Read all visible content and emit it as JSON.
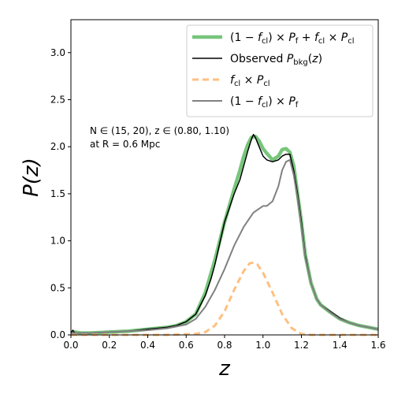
{
  "chart_data": {
    "type": "line",
    "xlabel": "z",
    "ylabel": "P(z)",
    "xlim": [
      0.0,
      1.6
    ],
    "ylim": [
      0.0,
      3.35
    ],
    "xticks": [
      "0.0",
      "0.2",
      "0.4",
      "0.6",
      "0.8",
      "1.0",
      "1.2",
      "1.4",
      "1.6"
    ],
    "yticks": [
      "0.0",
      "0.5",
      "1.0",
      "1.5",
      "2.0",
      "2.5",
      "3.0"
    ],
    "annotation": [
      "N ∈ (15, 20), z ∈ (0.80, 1.10)",
      "at R = 0.6 Mpc"
    ],
    "grid": false,
    "legend_position": "top-right",
    "series": [
      {
        "name": "(1 − f_cl) × P_f + f_cl × P_cl",
        "color": "#77c57b",
        "style": "solid-thick",
        "x": [
          0.0,
          0.02,
          0.05,
          0.1,
          0.2,
          0.3,
          0.35,
          0.4,
          0.5,
          0.55,
          0.6,
          0.65,
          0.7,
          0.75,
          0.8,
          0.85,
          0.88,
          0.9,
          0.92,
          0.94,
          0.96,
          0.98,
          1.0,
          1.02,
          1.05,
          1.08,
          1.1,
          1.12,
          1.14,
          1.16,
          1.18,
          1.2,
          1.22,
          1.25,
          1.28,
          1.3,
          1.35,
          1.4,
          1.45,
          1.5,
          1.55,
          1.6
        ],
        "y": [
          0.02,
          0.03,
          0.02,
          0.02,
          0.03,
          0.04,
          0.05,
          0.06,
          0.08,
          0.1,
          0.14,
          0.22,
          0.45,
          0.8,
          1.2,
          1.55,
          1.75,
          1.9,
          2.02,
          2.1,
          2.11,
          2.06,
          1.98,
          1.93,
          1.86,
          1.9,
          1.97,
          1.98,
          1.94,
          1.8,
          1.5,
          1.2,
          0.85,
          0.55,
          0.38,
          0.32,
          0.24,
          0.17,
          0.13,
          0.1,
          0.08,
          0.06
        ]
      },
      {
        "name": "Observed P_bkg(z)",
        "color": "#000000",
        "style": "solid",
        "x": [
          0.0,
          0.01,
          0.02,
          0.05,
          0.1,
          0.2,
          0.3,
          0.35,
          0.4,
          0.5,
          0.55,
          0.6,
          0.65,
          0.7,
          0.73,
          0.75,
          0.8,
          0.85,
          0.88,
          0.9,
          0.92,
          0.94,
          0.95,
          0.96,
          0.98,
          1.0,
          1.02,
          1.05,
          1.08,
          1.1,
          1.12,
          1.14,
          1.16,
          1.18,
          1.2,
          1.22,
          1.25,
          1.28,
          1.3,
          1.35,
          1.4,
          1.45,
          1.5,
          1.55,
          1.6
        ],
        "y": [
          0.02,
          0.05,
          0.02,
          0.02,
          0.02,
          0.03,
          0.04,
          0.05,
          0.06,
          0.08,
          0.1,
          0.14,
          0.22,
          0.42,
          0.6,
          0.75,
          1.2,
          1.5,
          1.65,
          1.8,
          1.95,
          2.08,
          2.13,
          2.1,
          2.0,
          1.9,
          1.86,
          1.84,
          1.86,
          1.9,
          1.92,
          1.92,
          1.75,
          1.5,
          1.2,
          0.85,
          0.55,
          0.38,
          0.32,
          0.25,
          0.18,
          0.13,
          0.1,
          0.08,
          0.06
        ]
      },
      {
        "name": "f_cl × P_cl",
        "color": "#ffbf7f",
        "style": "dashed",
        "x": [
          0.0,
          0.5,
          0.65,
          0.7,
          0.75,
          0.8,
          0.85,
          0.9,
          0.93,
          0.95,
          0.97,
          1.0,
          1.05,
          1.1,
          1.15,
          1.2,
          1.25,
          1.3,
          1.6
        ],
        "y": [
          0.0,
          0.0,
          0.01,
          0.03,
          0.1,
          0.25,
          0.48,
          0.68,
          0.76,
          0.77,
          0.75,
          0.66,
          0.45,
          0.22,
          0.07,
          0.01,
          0.0,
          0.0,
          0.0
        ]
      },
      {
        "name": "(1 − f_cl) × P_f",
        "color": "#808080",
        "style": "solid",
        "x": [
          0.0,
          0.05,
          0.1,
          0.2,
          0.3,
          0.4,
          0.5,
          0.6,
          0.65,
          0.7,
          0.75,
          0.8,
          0.85,
          0.9,
          0.95,
          1.0,
          1.02,
          1.05,
          1.08,
          1.1,
          1.12,
          1.14,
          1.16,
          1.18,
          1.2,
          1.22,
          1.25,
          1.28,
          1.3,
          1.35,
          1.4,
          1.45,
          1.5,
          1.55,
          1.6
        ],
        "y": [
          0.02,
          0.02,
          0.02,
          0.03,
          0.04,
          0.05,
          0.07,
          0.11,
          0.17,
          0.3,
          0.48,
          0.7,
          0.95,
          1.15,
          1.3,
          1.37,
          1.37,
          1.42,
          1.58,
          1.75,
          1.84,
          1.86,
          1.7,
          1.45,
          1.15,
          0.82,
          0.55,
          0.38,
          0.32,
          0.24,
          0.17,
          0.13,
          0.1,
          0.08,
          0.06
        ]
      }
    ]
  }
}
